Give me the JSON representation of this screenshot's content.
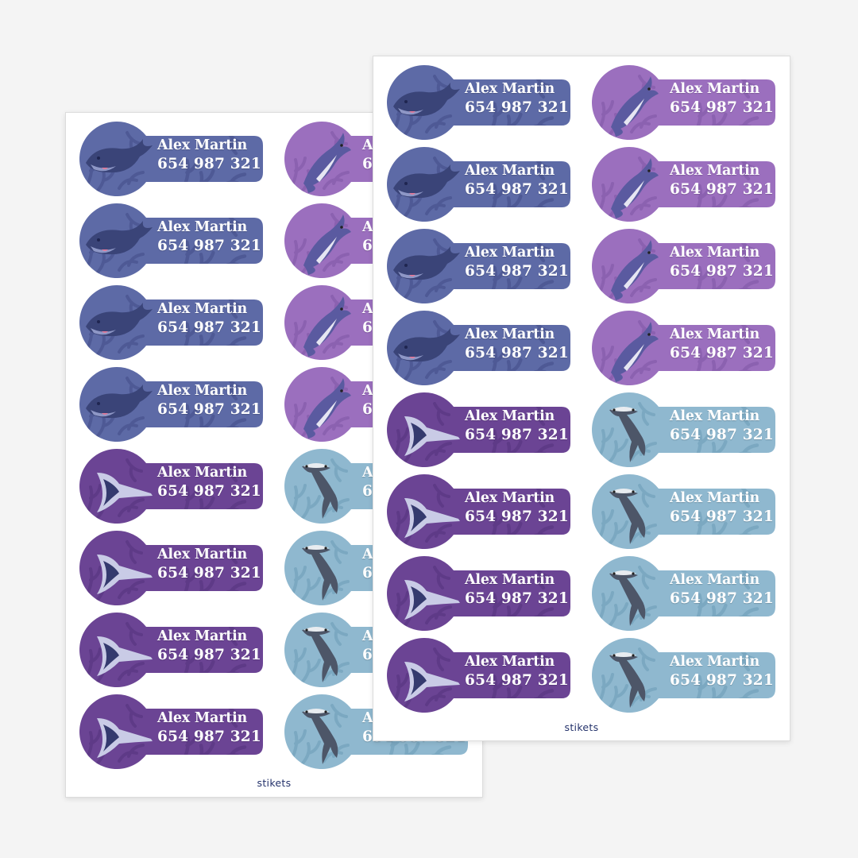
{
  "sticker": {
    "name": "Alex Martin",
    "phone": "654 987 321"
  },
  "brand": "stikets",
  "themes": {
    "whale": {
      "bg": "#5d6aa6",
      "pattern": "#4d5894",
      "animal": "#3a4478",
      "belly": "#8e97c6",
      "mouth": "#e07a9a"
    },
    "dolphin": {
      "bg": "#9b6fbe",
      "pattern": "#8a5fae",
      "animal": "#5a5aa0",
      "belly": "#e6e6f2",
      "mouth": "#5a5aa0"
    },
    "stingray": {
      "bg": "#6b4494",
      "pattern": "#5d3a85",
      "animal": "#c9cbe6",
      "belly": "#343a6e",
      "mouth": "#343a6e"
    },
    "hammerhead": {
      "bg": "#8fb8cf",
      "pattern": "#79a6bf",
      "animal": "#4d5668",
      "belly": "#e8ecf0",
      "mouth": "#4d5668"
    }
  },
  "sheets": [
    {
      "id": "sheet-back",
      "columns": [
        [
          "whale",
          "whale",
          "whale",
          "whale",
          "stingray",
          "stingray",
          "stingray",
          "stingray"
        ],
        [
          "dolphin",
          "dolphin",
          "dolphin",
          "dolphin",
          "hammerhead",
          "hammerhead",
          "hammerhead",
          "hammerhead"
        ]
      ]
    },
    {
      "id": "sheet-front",
      "columns": [
        [
          "whale",
          "whale",
          "whale",
          "whale",
          "stingray",
          "stingray",
          "stingray",
          "stingray"
        ],
        [
          "dolphin",
          "dolphin",
          "dolphin",
          "dolphin",
          "hammerhead",
          "hammerhead",
          "hammerhead",
          "hammerhead"
        ]
      ]
    }
  ]
}
